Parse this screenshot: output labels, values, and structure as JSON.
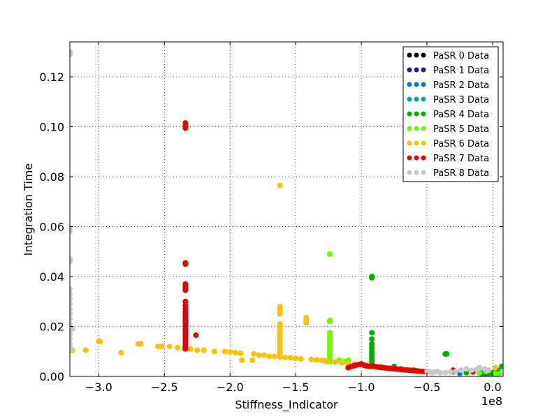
{
  "chart_data": {
    "type": "scatter",
    "title": "",
    "xlabel": "Stiffness_Indicator",
    "ylabel": "Integration Time",
    "x_multiplier_label": "1e8",
    "xlim": [
      -3.22,
      0.08
    ],
    "ylim": [
      0.0,
      0.134
    ],
    "x_ticks": [
      -3.0,
      -2.5,
      -2.0,
      -1.5,
      -1.0,
      -0.5,
      0.0
    ],
    "x_tick_labels": [
      "−3.0",
      "−2.5",
      "−2.0",
      "−1.5",
      "−1.0",
      "−0.5",
      "0.0"
    ],
    "y_ticks": [
      0.0,
      0.02,
      0.04,
      0.06,
      0.08,
      0.1,
      0.12
    ],
    "y_tick_labels": [
      "0.00",
      "0.02",
      "0.04",
      "0.06",
      "0.08",
      "0.10",
      "0.12"
    ],
    "grid": true,
    "legend_position": "top-right",
    "series": [
      {
        "name": "PaSR 0 Data",
        "color": "#000000",
        "points": [
          [
            -0.05,
            0.001
          ],
          [
            -0.02,
            0.0015
          ]
        ]
      },
      {
        "name": "PaSR 1 Data",
        "color": "#3b0f9e",
        "points": [
          [
            -0.04,
            0.0012
          ],
          [
            -0.01,
            0.0008
          ]
        ]
      },
      {
        "name": "PaSR 2 Data",
        "color": "#0a78d2",
        "points": [
          [
            -0.06,
            0.0012
          ],
          [
            -0.25,
            0.0012
          ],
          [
            -0.03,
            0.001
          ]
        ]
      },
      {
        "name": "PaSR 3 Data",
        "color": "#00a79b",
        "points": [
          [
            -0.08,
            0.0014
          ],
          [
            -0.02,
            0.0012
          ]
        ]
      },
      {
        "name": "PaSR 4 Data",
        "color": "#00b000",
        "points": [
          [
            -0.92,
            0.04
          ],
          [
            -0.92,
            0.0395
          ],
          [
            -0.92,
            0.0175
          ],
          [
            -0.92,
            0.015
          ],
          [
            -0.92,
            0.013
          ],
          [
            -0.92,
            0.012
          ],
          [
            -0.92,
            0.011
          ],
          [
            -0.92,
            0.01
          ],
          [
            -0.92,
            0.009
          ],
          [
            -0.92,
            0.008
          ],
          [
            -0.92,
            0.007
          ],
          [
            -0.92,
            0.006
          ],
          [
            -0.92,
            0.005
          ],
          [
            -0.92,
            0.004
          ],
          [
            -0.36,
            0.009
          ],
          [
            -0.35,
            0.009
          ],
          [
            -0.75,
            0.004
          ],
          [
            -0.7,
            0.003
          ],
          [
            -0.6,
            0.0025
          ],
          [
            -0.5,
            0.002
          ],
          [
            -0.3,
            0.0018
          ],
          [
            -0.2,
            0.0015
          ],
          [
            -0.1,
            0.0015
          ],
          [
            -0.05,
            0.002
          ],
          [
            0.0,
            0.0015
          ],
          [
            0.04,
            0.0025
          ],
          [
            0.07,
            0.004
          ],
          [
            -0.02,
            0.001
          ],
          [
            -0.08,
            0.001
          ]
        ]
      },
      {
        "name": "PaSR 5 Data",
        "color": "#66ff00",
        "points": [
          [
            -1.24,
            0.049
          ],
          [
            -1.24,
            0.0225
          ],
          [
            -1.24,
            0.022
          ],
          [
            -1.24,
            0.0175
          ],
          [
            -1.24,
            0.016
          ],
          [
            -1.24,
            0.015
          ],
          [
            -1.24,
            0.014
          ],
          [
            -1.24,
            0.013
          ],
          [
            -1.24,
            0.012
          ],
          [
            -1.24,
            0.011
          ],
          [
            -1.24,
            0.01
          ],
          [
            -1.24,
            0.009
          ],
          [
            -1.24,
            0.008
          ],
          [
            -1.24,
            0.007
          ],
          [
            -1.24,
            0.006
          ],
          [
            -1.17,
            0.0065
          ],
          [
            -1.13,
            0.006
          ],
          [
            -1.1,
            0.0065
          ],
          [
            -1.0,
            0.005
          ],
          [
            -0.95,
            0.0045
          ],
          [
            -0.85,
            0.004
          ],
          [
            -0.05,
            0.002
          ],
          [
            -0.1,
            0.0015
          ],
          [
            0.02,
            0.001
          ],
          [
            0.05,
            0.001
          ],
          [
            -0.15,
            0.002
          ]
        ]
      },
      {
        "name": "PaSR 6 Data",
        "color": "#ffc000",
        "points": [
          [
            -3.22,
            0.0105
          ],
          [
            -3.2,
            0.0105
          ],
          [
            -3.1,
            0.0105
          ],
          [
            -3.0,
            0.014
          ],
          [
            -2.99,
            0.014
          ],
          [
            -2.83,
            0.0095
          ],
          [
            -2.7,
            0.013
          ],
          [
            -2.68,
            0.013
          ],
          [
            -2.55,
            0.012
          ],
          [
            -2.52,
            0.012
          ],
          [
            -2.46,
            0.012
          ],
          [
            -2.4,
            0.0115
          ],
          [
            -2.35,
            0.0112
          ],
          [
            -2.3,
            0.011
          ],
          [
            -2.25,
            0.0105
          ],
          [
            -2.2,
            0.0105
          ],
          [
            -2.12,
            0.01
          ],
          [
            -2.04,
            0.01
          ],
          [
            -2.0,
            0.0098
          ],
          [
            -1.96,
            0.0095
          ],
          [
            -1.92,
            0.0093
          ],
          [
            -1.91,
            0.0065
          ],
          [
            -1.83,
            0.0065
          ],
          [
            -1.82,
            0.009
          ],
          [
            -1.78,
            0.0085
          ],
          [
            -1.74,
            0.0085
          ],
          [
            -1.7,
            0.008
          ],
          [
            -1.66,
            0.008
          ],
          [
            -1.62,
            0.0765
          ],
          [
            -1.62,
            0.028
          ],
          [
            -1.62,
            0.027
          ],
          [
            -1.62,
            0.026
          ],
          [
            -1.62,
            0.025
          ],
          [
            -1.62,
            0.021
          ],
          [
            -1.62,
            0.02
          ],
          [
            -1.62,
            0.019
          ],
          [
            -1.62,
            0.018
          ],
          [
            -1.62,
            0.017
          ],
          [
            -1.62,
            0.016
          ],
          [
            -1.62,
            0.015
          ],
          [
            -1.62,
            0.014
          ],
          [
            -1.62,
            0.013
          ],
          [
            -1.62,
            0.012
          ],
          [
            -1.62,
            0.011
          ],
          [
            -1.62,
            0.01
          ],
          [
            -1.62,
            0.009
          ],
          [
            -1.62,
            0.0078
          ],
          [
            -1.58,
            0.0076
          ],
          [
            -1.54,
            0.0075
          ],
          [
            -1.5,
            0.0072
          ],
          [
            -1.46,
            0.007
          ],
          [
            -1.42,
            0.0235
          ],
          [
            -1.42,
            0.0225
          ],
          [
            -1.42,
            0.0215
          ],
          [
            -1.38,
            0.0068
          ],
          [
            -1.34,
            0.0066
          ],
          [
            -1.3,
            0.0065
          ],
          [
            -1.28,
            0.0062
          ],
          [
            -1.26,
            0.006
          ],
          [
            -1.2,
            0.0058
          ],
          [
            -1.15,
            0.0055
          ],
          [
            -1.1,
            0.0052
          ],
          [
            -1.05,
            0.005
          ],
          [
            -0.05,
            0.0025
          ],
          [
            0.02,
            0.0035
          ]
        ]
      },
      {
        "name": "PaSR 7 Data",
        "color": "#e60000",
        "points": [
          [
            -2.34,
            0.1015
          ],
          [
            -2.34,
            0.1005
          ],
          [
            -2.34,
            0.0995
          ],
          [
            -2.34,
            0.0455
          ],
          [
            -2.34,
            0.045
          ],
          [
            -2.34,
            0.037
          ],
          [
            -2.34,
            0.036
          ],
          [
            -2.34,
            0.035
          ],
          [
            -2.34,
            0.0345
          ],
          [
            -2.34,
            0.03
          ],
          [
            -2.34,
            0.0285
          ],
          [
            -2.34,
            0.027
          ],
          [
            -2.34,
            0.026
          ],
          [
            -2.34,
            0.025
          ],
          [
            -2.34,
            0.024
          ],
          [
            -2.34,
            0.023
          ],
          [
            -2.34,
            0.022
          ],
          [
            -2.34,
            0.021
          ],
          [
            -2.34,
            0.02
          ],
          [
            -2.34,
            0.019
          ],
          [
            -2.34,
            0.018
          ],
          [
            -2.34,
            0.017
          ],
          [
            -2.34,
            0.016
          ],
          [
            -2.34,
            0.015
          ],
          [
            -2.34,
            0.014
          ],
          [
            -2.34,
            0.013
          ],
          [
            -2.34,
            0.012
          ],
          [
            -2.34,
            0.011
          ],
          [
            -2.26,
            0.0165
          ],
          [
            -1.1,
            0.0035
          ],
          [
            -1.08,
            0.004
          ],
          [
            -1.06,
            0.0042
          ],
          [
            -1.04,
            0.0045
          ],
          [
            -1.02,
            0.0048
          ],
          [
            -1.0,
            0.005
          ],
          [
            -0.98,
            0.0045
          ],
          [
            -0.96,
            0.0042
          ],
          [
            -0.94,
            0.004
          ],
          [
            -0.92,
            0.0042
          ],
          [
            -0.9,
            0.004
          ],
          [
            -0.88,
            0.0038
          ],
          [
            -0.86,
            0.0036
          ],
          [
            -0.84,
            0.0035
          ],
          [
            -0.82,
            0.0034
          ],
          [
            -0.8,
            0.0033
          ],
          [
            -0.78,
            0.0032
          ],
          [
            -0.76,
            0.0031
          ],
          [
            -0.74,
            0.003
          ],
          [
            -0.72,
            0.0029
          ],
          [
            -0.7,
            0.0028
          ],
          [
            -0.68,
            0.0027
          ],
          [
            -0.66,
            0.0026
          ],
          [
            -0.64,
            0.0025
          ],
          [
            -0.62,
            0.0024
          ],
          [
            -0.6,
            0.0023
          ],
          [
            -0.58,
            0.0022
          ],
          [
            -0.56,
            0.0021
          ],
          [
            -0.54,
            0.002
          ],
          [
            -0.52,
            0.0019
          ],
          [
            -0.3,
            0.0025
          ],
          [
            -0.15,
            0.0018
          ]
        ]
      },
      {
        "name": "PaSR 8 Data",
        "color": "#c8c8c8",
        "points": [
          [
            -3.22,
            0.13
          ],
          [
            -3.22,
            0.129
          ],
          [
            -3.22,
            0.059
          ],
          [
            -3.22,
            0.058
          ],
          [
            -3.22,
            0.047
          ],
          [
            -3.22,
            0.046
          ],
          [
            -3.22,
            0.035
          ],
          [
            -3.22,
            0.033
          ],
          [
            -3.22,
            0.031
          ],
          [
            -3.22,
            0.029
          ],
          [
            -3.22,
            0.027
          ],
          [
            -3.22,
            0.025
          ],
          [
            -3.22,
            0.023
          ],
          [
            -3.22,
            0.021
          ],
          [
            -3.22,
            0.019
          ],
          [
            -3.22,
            0.017
          ],
          [
            -3.22,
            0.015
          ],
          [
            -3.22,
            0.013
          ],
          [
            -3.21,
            0.011
          ],
          [
            -3.2,
            0.019
          ],
          [
            -0.5,
            0.002
          ],
          [
            -0.48,
            0.0018
          ],
          [
            -0.46,
            0.0015
          ],
          [
            -0.44,
            0.0018
          ],
          [
            -0.42,
            0.002
          ],
          [
            -0.4,
            0.0015
          ],
          [
            -0.36,
            0.0015
          ],
          [
            -0.32,
            0.0018
          ],
          [
            -0.28,
            0.002
          ],
          [
            -0.24,
            0.0025
          ],
          [
            -0.2,
            0.003
          ],
          [
            -0.16,
            0.0025
          ],
          [
            -0.12,
            0.0028
          ],
          [
            -0.1,
            0.0035
          ],
          [
            -0.06,
            0.003
          ],
          [
            -0.03,
            0.0025
          ]
        ]
      }
    ]
  }
}
